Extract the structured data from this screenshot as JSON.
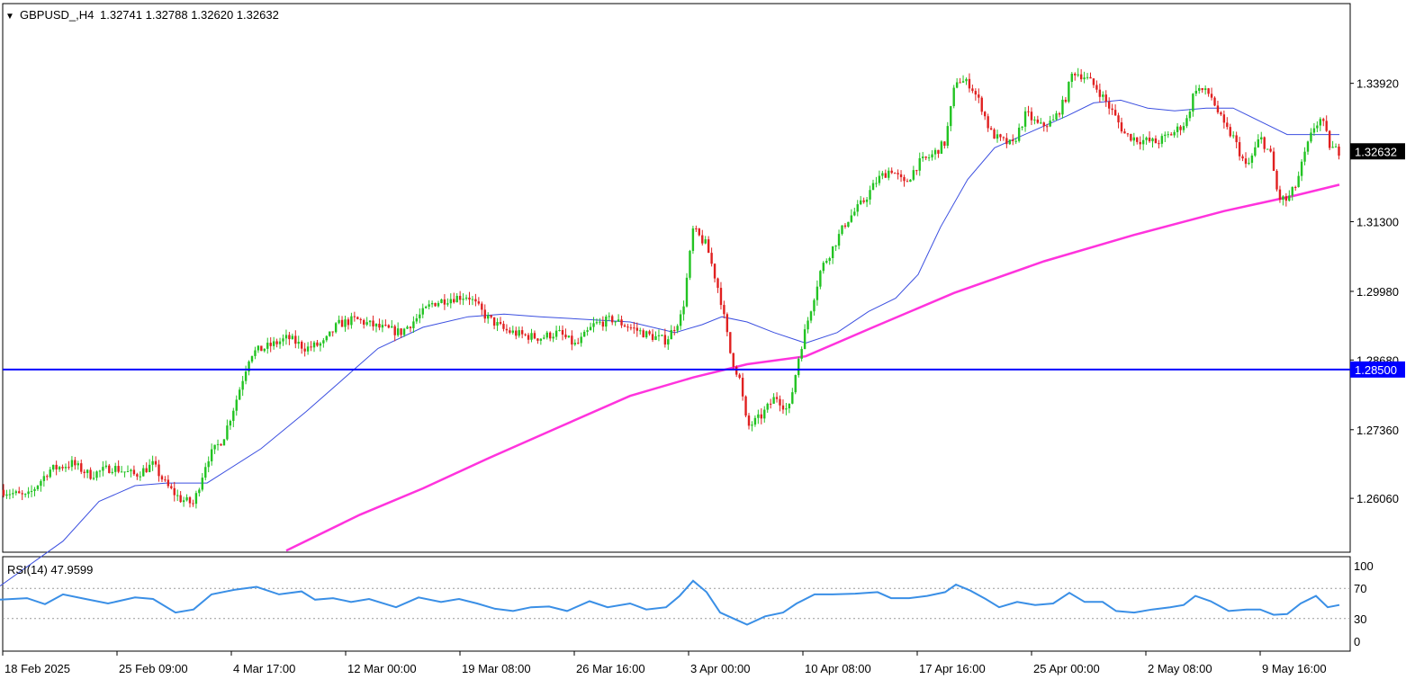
{
  "header": {
    "triangle": "▼",
    "symbol_tf": "GBPUSD_,H4",
    "ohlc": "1.32741 1.32788 1.32620 1.32632"
  },
  "chart_data": {
    "type": "candlestick",
    "symbol": "GBPUSD_",
    "timeframe": "H4",
    "price_axis": {
      "ticks": [
        "1.33920",
        "1.32632",
        "1.31300",
        "1.29980",
        "1.28680",
        "1.28500",
        "1.27360",
        "1.26060"
      ],
      "ylim": [
        1.2504,
        1.3543
      ]
    },
    "x_tick_labels": [
      "18 Feb 2025",
      "25 Feb 09:00",
      "4 Mar 17:00",
      "12 Mar 00:00",
      "19 Mar 08:00",
      "26 Mar 16:00",
      "3 Apr 00:00",
      "10 Apr 08:00",
      "17 Apr 16:00",
      "25 Apr 00:00",
      "2 May 08:00",
      "9 May 16:00"
    ],
    "current_price": "1.32632",
    "horizontal_line": {
      "value": 1.285,
      "label": "1.28500",
      "color": "#0000ff"
    },
    "colors": {
      "bull": "#22c322",
      "bear": "#e02020",
      "ma_fast": "#3b4fe0",
      "ma_slow": "#ff33dd",
      "rsi": "#3a8fe6"
    },
    "close_path": [
      [
        0,
        1.2622
      ],
      [
        30,
        1.2608
      ],
      [
        55,
        1.266
      ],
      [
        80,
        1.2672
      ],
      [
        100,
        1.265
      ],
      [
        125,
        1.2665
      ],
      [
        150,
        1.265
      ],
      [
        170,
        1.267
      ],
      [
        185,
        1.263
      ],
      [
        200,
        1.2605
      ],
      [
        215,
        1.2595
      ],
      [
        230,
        1.268
      ],
      [
        248,
        1.272
      ],
      [
        262,
        1.279
      ],
      [
        278,
        1.288
      ],
      [
        300,
        1.2895
      ],
      [
        320,
        1.291
      ],
      [
        340,
        1.289
      ],
      [
        360,
        1.29
      ],
      [
        375,
        1.2935
      ],
      [
        395,
        1.2945
      ],
      [
        420,
        1.293
      ],
      [
        445,
        1.292
      ],
      [
        465,
        1.295
      ],
      [
        480,
        1.2975
      ],
      [
        500,
        1.2985
      ],
      [
        520,
        1.299
      ],
      [
        540,
        1.295
      ],
      [
        560,
        1.2925
      ],
      [
        580,
        1.2915
      ],
      [
        600,
        1.291
      ],
      [
        620,
        1.292
      ],
      [
        640,
        1.2895
      ],
      [
        660,
        1.2935
      ],
      [
        680,
        1.2945
      ],
      [
        700,
        1.293
      ],
      [
        720,
        1.2915
      ],
      [
        740,
        1.2905
      ],
      [
        758,
        1.2955
      ],
      [
        770,
        1.3115
      ],
      [
        785,
        1.3085
      ],
      [
        800,
        1.299
      ],
      [
        812,
        1.2875
      ],
      [
        822,
        1.283
      ],
      [
        830,
        1.274
      ],
      [
        845,
        1.276
      ],
      [
        862,
        1.28
      ],
      [
        876,
        1.277
      ],
      [
        888,
        1.288
      ],
      [
        900,
        1.296
      ],
      [
        912,
        1.304
      ],
      [
        925,
        1.308
      ],
      [
        940,
        1.313
      ],
      [
        960,
        1.317
      ],
      [
        975,
        1.321
      ],
      [
        990,
        1.323
      ],
      [
        1005,
        1.32
      ],
      [
        1020,
        1.324
      ],
      [
        1035,
        1.3255
      ],
      [
        1050,
        1.328
      ],
      [
        1062,
        1.34
      ],
      [
        1078,
        1.339
      ],
      [
        1090,
        1.335
      ],
      [
        1100,
        1.33
      ],
      [
        1110,
        1.3285
      ],
      [
        1125,
        1.3275
      ],
      [
        1140,
        1.3335
      ],
      [
        1155,
        1.331
      ],
      [
        1170,
        1.332
      ],
      [
        1183,
        1.336
      ],
      [
        1192,
        1.3415
      ],
      [
        1205,
        1.3405
      ],
      [
        1220,
        1.338
      ],
      [
        1235,
        1.334
      ],
      [
        1250,
        1.3295
      ],
      [
        1265,
        1.3285
      ],
      [
        1285,
        1.328
      ],
      [
        1305,
        1.33
      ],
      [
        1318,
        1.332
      ],
      [
        1328,
        1.3385
      ],
      [
        1345,
        1.337
      ],
      [
        1360,
        1.331
      ],
      [
        1370,
        1.329
      ],
      [
        1385,
        1.323
      ],
      [
        1400,
        1.329
      ],
      [
        1412,
        1.3255
      ],
      [
        1420,
        1.3175
      ],
      [
        1430,
        1.317
      ],
      [
        1440,
        1.32
      ],
      [
        1450,
        1.326
      ],
      [
        1460,
        1.331
      ],
      [
        1468,
        1.3325
      ],
      [
        1478,
        1.327
      ],
      [
        1488,
        1.3263
      ]
    ],
    "ma_fast": [
      [
        0,
        1.244
      ],
      [
        70,
        1.2525
      ],
      [
        110,
        1.26
      ],
      [
        150,
        1.263
      ],
      [
        185,
        1.2635
      ],
      [
        230,
        1.2635
      ],
      [
        290,
        1.27
      ],
      [
        340,
        1.277
      ],
      [
        380,
        1.283
      ],
      [
        420,
        1.289
      ],
      [
        470,
        1.293
      ],
      [
        520,
        1.295
      ],
      [
        560,
        1.2955
      ],
      [
        600,
        1.295
      ],
      [
        650,
        1.2945
      ],
      [
        700,
        1.294
      ],
      [
        750,
        1.292
      ],
      [
        780,
        1.2935
      ],
      [
        802,
        1.295
      ],
      [
        830,
        1.294
      ],
      [
        860,
        1.292
      ],
      [
        895,
        1.29
      ],
      [
        930,
        1.292
      ],
      [
        965,
        1.296
      ],
      [
        995,
        1.2985
      ],
      [
        1020,
        1.303
      ],
      [
        1045,
        1.312
      ],
      [
        1075,
        1.321
      ],
      [
        1105,
        1.327
      ],
      [
        1145,
        1.33
      ],
      [
        1185,
        1.333
      ],
      [
        1215,
        1.3355
      ],
      [
        1245,
        1.336
      ],
      [
        1275,
        1.3345
      ],
      [
        1305,
        1.334
      ],
      [
        1340,
        1.3345
      ],
      [
        1370,
        1.3345
      ],
      [
        1400,
        1.332
      ],
      [
        1430,
        1.3295
      ],
      [
        1460,
        1.3295
      ],
      [
        1488,
        1.3295
      ]
    ],
    "ma_slow": [
      [
        318,
        1.2507
      ],
      [
        400,
        1.2575
      ],
      [
        470,
        1.2625
      ],
      [
        540,
        1.268
      ],
      [
        620,
        1.274
      ],
      [
        700,
        1.28
      ],
      [
        770,
        1.2835
      ],
      [
        830,
        1.286
      ],
      [
        895,
        1.2875
      ],
      [
        970,
        1.293
      ],
      [
        1060,
        1.2995
      ],
      [
        1160,
        1.3055
      ],
      [
        1260,
        1.3105
      ],
      [
        1360,
        1.315
      ],
      [
        1440,
        1.318
      ],
      [
        1488,
        1.32
      ]
    ],
    "rsi": {
      "label": "RSI(14) 47.9599",
      "period": 14,
      "current": 47.9599,
      "levels": [
        70,
        30
      ],
      "ticks": [
        "100",
        "70",
        "30",
        "0"
      ],
      "series": [
        [
          0,
          55
        ],
        [
          30,
          57
        ],
        [
          50,
          49
        ],
        [
          70,
          62
        ],
        [
          95,
          56
        ],
        [
          120,
          50
        ],
        [
          150,
          58
        ],
        [
          170,
          56
        ],
        [
          195,
          38
        ],
        [
          215,
          42
        ],
        [
          235,
          62
        ],
        [
          260,
          68
        ],
        [
          285,
          72
        ],
        [
          310,
          62
        ],
        [
          335,
          66
        ],
        [
          350,
          55
        ],
        [
          370,
          57
        ],
        [
          390,
          52
        ],
        [
          410,
          56
        ],
        [
          440,
          45
        ],
        [
          465,
          58
        ],
        [
          490,
          52
        ],
        [
          510,
          56
        ],
        [
          530,
          50
        ],
        [
          550,
          43
        ],
        [
          570,
          40
        ],
        [
          590,
          45
        ],
        [
          610,
          46
        ],
        [
          630,
          40
        ],
        [
          655,
          53
        ],
        [
          675,
          45
        ],
        [
          700,
          50
        ],
        [
          718,
          42
        ],
        [
          740,
          45
        ],
        [
          755,
          60
        ],
        [
          770,
          80
        ],
        [
          785,
          65
        ],
        [
          800,
          38
        ],
        [
          815,
          30
        ],
        [
          830,
          22
        ],
        [
          850,
          33
        ],
        [
          870,
          38
        ],
        [
          885,
          50
        ],
        [
          905,
          62
        ],
        [
          925,
          62
        ],
        [
          950,
          63
        ],
        [
          975,
          65
        ],
        [
          990,
          57
        ],
        [
          1010,
          57
        ],
        [
          1030,
          60
        ],
        [
          1050,
          65
        ],
        [
          1062,
          75
        ],
        [
          1078,
          67
        ],
        [
          1095,
          56
        ],
        [
          1110,
          45
        ],
        [
          1130,
          52
        ],
        [
          1150,
          48
        ],
        [
          1170,
          50
        ],
        [
          1188,
          64
        ],
        [
          1205,
          52
        ],
        [
          1225,
          52
        ],
        [
          1240,
          40
        ],
        [
          1260,
          38
        ],
        [
          1280,
          42
        ],
        [
          1300,
          45
        ],
        [
          1315,
          48
        ],
        [
          1328,
          60
        ],
        [
          1345,
          53
        ],
        [
          1365,
          40
        ],
        [
          1385,
          42
        ],
        [
          1400,
          42
        ],
        [
          1415,
          35
        ],
        [
          1430,
          36
        ],
        [
          1445,
          50
        ],
        [
          1462,
          60
        ],
        [
          1475,
          45
        ],
        [
          1488,
          48
        ]
      ]
    }
  }
}
